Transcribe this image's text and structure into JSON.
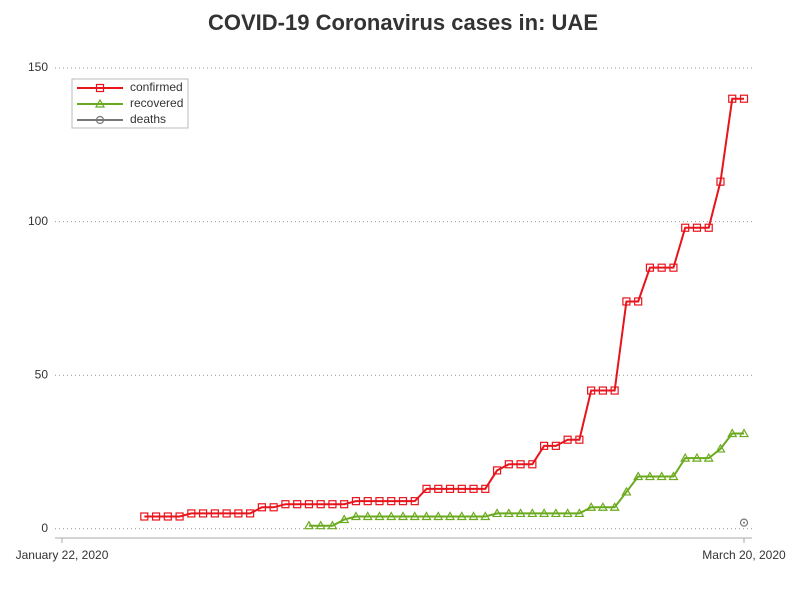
{
  "chart_data": {
    "type": "line",
    "title": "COVID-19 Coronavirus cases in: UAE",
    "x": [
      "2020-01-22",
      "2020-01-23",
      "2020-01-24",
      "2020-01-25",
      "2020-01-26",
      "2020-01-27",
      "2020-01-28",
      "2020-01-29",
      "2020-01-30",
      "2020-01-31",
      "2020-02-01",
      "2020-02-02",
      "2020-02-03",
      "2020-02-04",
      "2020-02-05",
      "2020-02-06",
      "2020-02-07",
      "2020-02-08",
      "2020-02-09",
      "2020-02-10",
      "2020-02-11",
      "2020-02-12",
      "2020-02-13",
      "2020-02-14",
      "2020-02-15",
      "2020-02-16",
      "2020-02-17",
      "2020-02-18",
      "2020-02-19",
      "2020-02-20",
      "2020-02-21",
      "2020-02-22",
      "2020-02-23",
      "2020-02-24",
      "2020-02-25",
      "2020-02-26",
      "2020-02-27",
      "2020-02-28",
      "2020-02-29",
      "2020-03-01",
      "2020-03-02",
      "2020-03-03",
      "2020-03-04",
      "2020-03-05",
      "2020-03-06",
      "2020-03-07",
      "2020-03-08",
      "2020-03-09",
      "2020-03-10",
      "2020-03-11",
      "2020-03-12",
      "2020-03-13",
      "2020-03-14",
      "2020-03-15",
      "2020-03-16",
      "2020-03-17",
      "2020-03-18",
      "2020-03-19",
      "2020-03-20"
    ],
    "series": [
      {
        "name": "confirmed",
        "color": "#e8141c",
        "marker": "square",
        "values": [
          null,
          null,
          null,
          null,
          null,
          null,
          null,
          4,
          4,
          4,
          4,
          5,
          5,
          5,
          5,
          5,
          5,
          7,
          7,
          8,
          8,
          8,
          8,
          8,
          8,
          9,
          9,
          9,
          9,
          9,
          9,
          13,
          13,
          13,
          13,
          13,
          13,
          19,
          21,
          21,
          21,
          27,
          27,
          29,
          29,
          45,
          45,
          45,
          74,
          74,
          85,
          85,
          85,
          98,
          98,
          98,
          113,
          140,
          140
        ]
      },
      {
        "name": "recovered",
        "color": "#6aaa1e",
        "marker": "triangle",
        "values": [
          null,
          null,
          null,
          null,
          null,
          null,
          null,
          null,
          null,
          null,
          null,
          null,
          null,
          null,
          null,
          null,
          null,
          null,
          null,
          null,
          null,
          1,
          1,
          1,
          3,
          4,
          4,
          4,
          4,
          4,
          4,
          4,
          4,
          4,
          4,
          4,
          4,
          5,
          5,
          5,
          5,
          5,
          5,
          5,
          5,
          7,
          7,
          7,
          12,
          17,
          17,
          17,
          17,
          23,
          23,
          23,
          26,
          31,
          31
        ]
      },
      {
        "name": "deaths",
        "color": "#777777",
        "marker": "circle",
        "values": [
          null,
          null,
          null,
          null,
          null,
          null,
          null,
          null,
          null,
          null,
          null,
          null,
          null,
          null,
          null,
          null,
          null,
          null,
          null,
          null,
          null,
          null,
          null,
          null,
          null,
          null,
          null,
          null,
          null,
          null,
          null,
          null,
          null,
          null,
          null,
          null,
          null,
          null,
          null,
          null,
          null,
          null,
          null,
          null,
          null,
          null,
          null,
          null,
          null,
          null,
          null,
          null,
          null,
          null,
          null,
          null,
          null,
          null,
          2
        ]
      }
    ],
    "xlim": [
      "2020-01-22",
      "2020-03-20"
    ],
    "xticks": [
      {
        "value": "2020-01-22",
        "label": "January 22, 2020"
      },
      {
        "value": "2020-03-20",
        "label": "March 20, 2020"
      }
    ],
    "ylim": [
      -3,
      150
    ],
    "yticks": [
      0,
      50,
      100,
      150
    ],
    "grid": true,
    "legend": "top-left"
  }
}
